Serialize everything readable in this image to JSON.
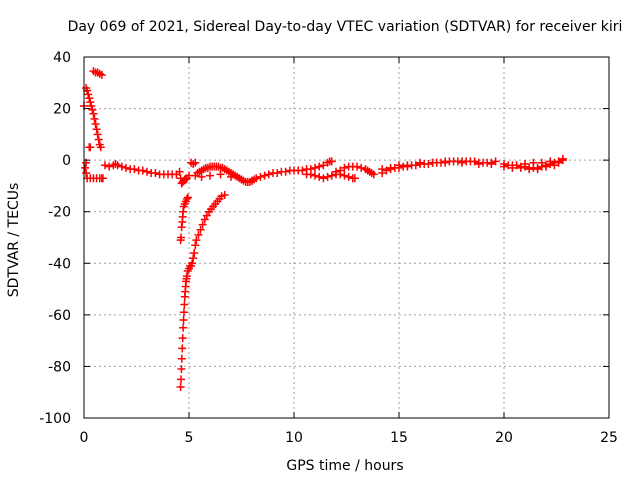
{
  "chart_data": {
    "type": "scatter",
    "title": "Day 069 of 2021, Sidereal Day-to-day VTEC variation (SDTVAR) for receiver kiri",
    "xlabel": "GPS time / hours",
    "ylabel": "SDTVAR / TECUs",
    "xlim": [
      0,
      25
    ],
    "ylim": [
      -100,
      40
    ],
    "xticks": [
      0,
      5,
      10,
      15,
      20,
      25
    ],
    "yticks": [
      -100,
      -80,
      -60,
      -40,
      -20,
      0,
      20,
      40
    ],
    "grid": true,
    "marker": "+",
    "color": "#ff0000",
    "series": [
      {
        "name": "SDTVAR",
        "points": [
          [
            0.0,
            21
          ],
          [
            0.05,
            -3
          ],
          [
            0.1,
            -1
          ],
          [
            0.1,
            -5
          ],
          [
            0.1,
            28
          ],
          [
            0.15,
            27
          ],
          [
            0.2,
            25.5
          ],
          [
            0.25,
            24
          ],
          [
            0.3,
            22.5
          ],
          [
            0.35,
            21
          ],
          [
            0.4,
            19.5
          ],
          [
            0.45,
            18
          ],
          [
            0.5,
            16
          ],
          [
            0.55,
            14
          ],
          [
            0.6,
            12
          ],
          [
            0.65,
            10
          ],
          [
            0.7,
            8
          ],
          [
            0.75,
            6
          ],
          [
            0.8,
            5
          ],
          [
            0.25,
            5
          ],
          [
            0.3,
            5
          ],
          [
            0.15,
            -7
          ],
          [
            0.3,
            -7
          ],
          [
            0.45,
            -7
          ],
          [
            0.6,
            -7
          ],
          [
            0.75,
            -7
          ],
          [
            0.9,
            -7
          ],
          [
            0.85,
            -7
          ],
          [
            0.45,
            34.5
          ],
          [
            0.55,
            34
          ],
          [
            0.65,
            34
          ],
          [
            0.75,
            33.5
          ],
          [
            0.85,
            33
          ],
          [
            1.0,
            -2
          ],
          [
            1.2,
            -2.5
          ],
          [
            1.4,
            -2
          ],
          [
            1.5,
            -1.5
          ],
          [
            1.6,
            -2
          ],
          [
            1.8,
            -2.5
          ],
          [
            2.0,
            -3
          ],
          [
            2.2,
            -3.5
          ],
          [
            2.4,
            -3.5
          ],
          [
            2.6,
            -4
          ],
          [
            2.8,
            -4
          ],
          [
            3.0,
            -4.5
          ],
          [
            3.2,
            -5
          ],
          [
            3.4,
            -5
          ],
          [
            3.6,
            -5.5
          ],
          [
            3.8,
            -5.5
          ],
          [
            4.0,
            -5.5
          ],
          [
            4.2,
            -5.5
          ],
          [
            4.4,
            -5.5
          ],
          [
            4.55,
            -4.5
          ],
          [
            4.6,
            -7
          ],
          [
            4.65,
            -9
          ],
          [
            4.7,
            -8.5
          ],
          [
            4.75,
            -8
          ],
          [
            4.8,
            -7.5
          ],
          [
            4.85,
            -7.5
          ],
          [
            4.9,
            -7
          ],
          [
            5.0,
            -6
          ],
          [
            4.6,
            -31
          ],
          [
            4.62,
            -30
          ],
          [
            4.65,
            -26
          ],
          [
            4.68,
            -24
          ],
          [
            4.7,
            -22
          ],
          [
            4.72,
            -20
          ],
          [
            4.75,
            -18
          ],
          [
            4.8,
            -17
          ],
          [
            4.85,
            -16
          ],
          [
            4.9,
            -15
          ],
          [
            4.95,
            -14.5
          ],
          [
            4.6,
            -88
          ],
          [
            4.62,
            -85
          ],
          [
            4.64,
            -81
          ],
          [
            4.66,
            -77
          ],
          [
            4.68,
            -73
          ],
          [
            4.7,
            -69
          ],
          [
            4.72,
            -65
          ],
          [
            4.74,
            -62
          ],
          [
            4.76,
            -59
          ],
          [
            4.78,
            -56
          ],
          [
            4.8,
            -53
          ],
          [
            4.82,
            -51
          ],
          [
            4.84,
            -49
          ],
          [
            4.86,
            -47
          ],
          [
            4.88,
            -46
          ],
          [
            4.9,
            -45
          ],
          [
            4.94,
            -43
          ],
          [
            5.0,
            -42
          ],
          [
            5.05,
            -41
          ],
          [
            5.1,
            -41
          ],
          [
            5.15,
            -40
          ],
          [
            5.2,
            -38
          ],
          [
            5.25,
            -36
          ],
          [
            5.3,
            -33
          ],
          [
            5.35,
            -31
          ],
          [
            5.45,
            -29
          ],
          [
            5.55,
            -27
          ],
          [
            5.65,
            -25
          ],
          [
            5.75,
            -23
          ],
          [
            5.85,
            -21.5
          ],
          [
            5.95,
            -20
          ],
          [
            6.05,
            -19
          ],
          [
            6.15,
            -18
          ],
          [
            6.25,
            -17
          ],
          [
            6.35,
            -16
          ],
          [
            6.45,
            -15
          ],
          [
            6.55,
            -14
          ],
          [
            6.7,
            -13.5
          ],
          [
            5.1,
            -1
          ],
          [
            5.2,
            -1.5
          ],
          [
            5.3,
            -1
          ],
          [
            5.4,
            -5
          ],
          [
            5.5,
            -4.5
          ],
          [
            5.6,
            -4
          ],
          [
            5.7,
            -3.5
          ],
          [
            5.8,
            -3
          ],
          [
            5.9,
            -3
          ],
          [
            6.0,
            -2.5
          ],
          [
            6.1,
            -2.5
          ],
          [
            6.2,
            -2.5
          ],
          [
            6.3,
            -2.5
          ],
          [
            6.4,
            -2.5
          ],
          [
            6.5,
            -3
          ],
          [
            6.6,
            -3
          ],
          [
            6.7,
            -3.5
          ],
          [
            6.8,
            -4
          ],
          [
            6.9,
            -4.5
          ],
          [
            7.0,
            -5
          ],
          [
            7.1,
            -5.5
          ],
          [
            7.2,
            -6
          ],
          [
            7.3,
            -6.5
          ],
          [
            7.4,
            -7
          ],
          [
            7.5,
            -7.5
          ],
          [
            7.6,
            -8
          ],
          [
            7.7,
            -8.5
          ],
          [
            7.8,
            -8.5
          ],
          [
            7.9,
            -8.5
          ],
          [
            8.0,
            -8
          ],
          [
            8.1,
            -7.5
          ],
          [
            5.3,
            -6
          ],
          [
            5.6,
            -6.5
          ],
          [
            6.0,
            -6
          ],
          [
            6.5,
            -5.5
          ],
          [
            7.0,
            -6.5
          ],
          [
            7.5,
            -7.5
          ],
          [
            8.0,
            -8
          ],
          [
            8.2,
            -7
          ],
          [
            8.4,
            -6.5
          ],
          [
            8.6,
            -6
          ],
          [
            8.8,
            -5.5
          ],
          [
            9.0,
            -5
          ],
          [
            9.2,
            -5
          ],
          [
            9.4,
            -4.5
          ],
          [
            9.6,
            -4.5
          ],
          [
            9.8,
            -4
          ],
          [
            10.0,
            -4
          ],
          [
            10.2,
            -4
          ],
          [
            10.4,
            -4
          ],
          [
            10.6,
            -3.5
          ],
          [
            10.8,
            -3.5
          ],
          [
            11.0,
            -3
          ],
          [
            11.2,
            -2.5
          ],
          [
            11.4,
            -2
          ],
          [
            11.6,
            -1
          ],
          [
            11.7,
            -0.5
          ],
          [
            11.8,
            -0.5
          ],
          [
            10.6,
            -5.5
          ],
          [
            10.8,
            -5.5
          ],
          [
            11.0,
            -6
          ],
          [
            11.2,
            -6.5
          ],
          [
            11.4,
            -7
          ],
          [
            11.6,
            -6.5
          ],
          [
            11.8,
            -6
          ],
          [
            12.0,
            -5.5
          ],
          [
            12.2,
            -5.5
          ],
          [
            12.4,
            -6
          ],
          [
            12.6,
            -6.5
          ],
          [
            12.8,
            -7
          ],
          [
            12.9,
            -7
          ],
          [
            12.0,
            -4.5
          ],
          [
            12.2,
            -4
          ],
          [
            12.4,
            -3
          ],
          [
            12.6,
            -2.5
          ],
          [
            12.8,
            -2.5
          ],
          [
            13.0,
            -2.5
          ],
          [
            13.2,
            -3
          ],
          [
            13.4,
            -3.5
          ],
          [
            13.5,
            -4
          ],
          [
            13.6,
            -4.5
          ],
          [
            13.7,
            -5
          ],
          [
            13.8,
            -5.5
          ],
          [
            14.2,
            -5
          ],
          [
            14.4,
            -4
          ],
          [
            14.6,
            -3.5
          ],
          [
            14.8,
            -3
          ],
          [
            15.0,
            -3
          ],
          [
            15.2,
            -2.5
          ],
          [
            15.4,
            -2.5
          ],
          [
            15.6,
            -2
          ],
          [
            15.8,
            -2
          ],
          [
            16.0,
            -1.5
          ],
          [
            16.2,
            -1.5
          ],
          [
            16.4,
            -1.5
          ],
          [
            16.6,
            -1
          ],
          [
            16.8,
            -1
          ],
          [
            17.0,
            -1
          ],
          [
            17.2,
            -1
          ],
          [
            17.4,
            -0.5
          ],
          [
            17.6,
            -0.5
          ],
          [
            17.8,
            -0.5
          ],
          [
            18.0,
            -0.5
          ],
          [
            18.2,
            -0.5
          ],
          [
            18.4,
            -0.5
          ],
          [
            18.6,
            -0.5
          ],
          [
            18.8,
            -1
          ],
          [
            19.0,
            -1
          ],
          [
            19.2,
            -1
          ],
          [
            19.4,
            -1
          ],
          [
            19.6,
            -0.5
          ],
          [
            14.2,
            -3.5
          ],
          [
            14.6,
            -3
          ],
          [
            15.0,
            -2
          ],
          [
            15.4,
            -2
          ],
          [
            16.0,
            -1
          ],
          [
            16.6,
            -1
          ],
          [
            17.2,
            -0.5
          ],
          [
            18.0,
            -1
          ],
          [
            18.8,
            -1.5
          ],
          [
            19.4,
            -1.5
          ],
          [
            20.0,
            -1.5
          ],
          [
            20.2,
            -2
          ],
          [
            20.4,
            -2
          ],
          [
            20.6,
            -2
          ],
          [
            20.8,
            -2.5
          ],
          [
            21.0,
            -2.5
          ],
          [
            21.2,
            -3
          ],
          [
            21.4,
            -3
          ],
          [
            21.6,
            -3
          ],
          [
            21.8,
            -2.5
          ],
          [
            22.0,
            -2
          ],
          [
            22.2,
            -1.5
          ],
          [
            22.4,
            -1
          ],
          [
            22.6,
            -1
          ],
          [
            22.8,
            0
          ],
          [
            20.0,
            -2.5
          ],
          [
            20.4,
            -3
          ],
          [
            20.8,
            -3
          ],
          [
            21.2,
            -3.5
          ],
          [
            21.6,
            -3.5
          ],
          [
            22.0,
            -2.5
          ],
          [
            22.4,
            -2
          ],
          [
            22.8,
            0.5
          ],
          [
            21.0,
            -1.5
          ],
          [
            21.4,
            -1
          ],
          [
            21.8,
            -1
          ],
          [
            22.2,
            -0.5
          ],
          [
            22.6,
            -0.5
          ]
        ]
      }
    ]
  }
}
